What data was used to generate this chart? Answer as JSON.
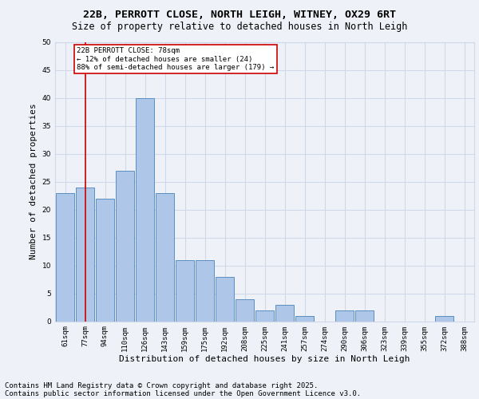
{
  "title_line1": "22B, PERROTT CLOSE, NORTH LEIGH, WITNEY, OX29 6RT",
  "title_line2": "Size of property relative to detached houses in North Leigh",
  "xlabel": "Distribution of detached houses by size in North Leigh",
  "ylabel": "Number of detached properties",
  "categories": [
    "61sqm",
    "77sqm",
    "94sqm",
    "110sqm",
    "126sqm",
    "143sqm",
    "159sqm",
    "175sqm",
    "192sqm",
    "208sqm",
    "225sqm",
    "241sqm",
    "257sqm",
    "274sqm",
    "290sqm",
    "306sqm",
    "323sqm",
    "339sqm",
    "355sqm",
    "372sqm",
    "388sqm"
  ],
  "values": [
    23,
    24,
    22,
    27,
    40,
    23,
    11,
    11,
    8,
    4,
    2,
    3,
    1,
    0,
    2,
    2,
    0,
    0,
    0,
    1,
    0
  ],
  "bar_color": "#aec6e8",
  "bar_edge_color": "#5a8fc2",
  "grid_color": "#d0d8e8",
  "background_color": "#eef2f8",
  "property_line_x": 1,
  "annotation_text": "22B PERROTT CLOSE: 78sqm\n← 12% of detached houses are smaller (24)\n88% of semi-detached houses are larger (179) →",
  "annotation_box_color": "#ffffff",
  "annotation_box_edge": "#cc0000",
  "annotation_text_color": "#000000",
  "property_line_color": "#cc0000",
  "footer_line1": "Contains HM Land Registry data © Crown copyright and database right 2025.",
  "footer_line2": "Contains public sector information licensed under the Open Government Licence v3.0.",
  "ylim": [
    0,
    50
  ],
  "yticks": [
    0,
    5,
    10,
    15,
    20,
    25,
    30,
    35,
    40,
    45,
    50
  ],
  "title_fontsize": 9.5,
  "subtitle_fontsize": 8.5,
  "footer_fontsize": 6.5,
  "xlabel_fontsize": 8,
  "ylabel_fontsize": 8,
  "tick_fontsize": 6.5,
  "annot_fontsize": 6.5
}
